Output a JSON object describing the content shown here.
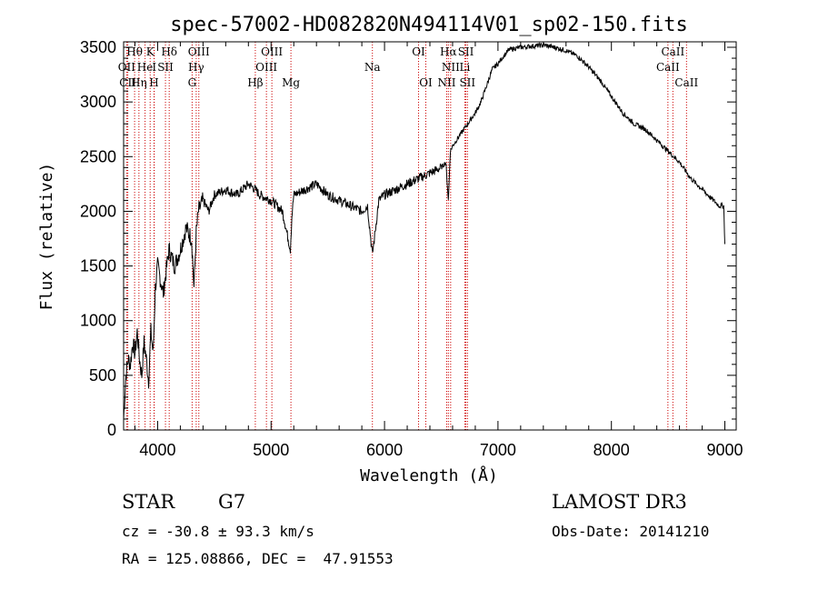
{
  "chart_data": {
    "type": "line",
    "title": "spec-57002-HD082820N494114V01_sp02-150.fits",
    "xlabel": "Wavelength (Å)",
    "ylabel": "Flux (relative)",
    "xlim": [
      3700,
      9100
    ],
    "ylim": [
      0,
      3550
    ],
    "x_ticks": [
      4000,
      5000,
      6000,
      7000,
      8000,
      9000
    ],
    "y_ticks": [
      0,
      500,
      1000,
      1500,
      2000,
      2500,
      3000,
      3500
    ],
    "series": [
      {
        "name": "flux",
        "x": [
          3700,
          3720,
          3740,
          3760,
          3780,
          3800,
          3820,
          3840,
          3860,
          3880,
          3900,
          3920,
          3940,
          3960,
          3980,
          4000,
          4050,
          4100,
          4150,
          4200,
          4250,
          4300,
          4320,
          4340,
          4360,
          4400,
          4450,
          4500,
          4600,
          4700,
          4800,
          4861,
          4900,
          5000,
          5100,
          5170,
          5183,
          5200,
          5300,
          5400,
          5500,
          5600,
          5700,
          5800,
          5850,
          5893,
          5950,
          6000,
          6100,
          6200,
          6300,
          6400,
          6500,
          6540,
          6563,
          6580,
          6600,
          6700,
          6800,
          6850,
          6900,
          6950,
          7000,
          7050,
          7100,
          7200,
          7300,
          7400,
          7500,
          7600,
          7700,
          7800,
          7900,
          8000,
          8100,
          8200,
          8300,
          8400,
          8500,
          8600,
          8700,
          8800,
          8900,
          8950,
          8990,
          9000
        ],
        "y": [
          100,
          500,
          650,
          600,
          800,
          700,
          900,
          650,
          500,
          800,
          650,
          450,
          900,
          700,
          1300,
          1500,
          1250,
          1650,
          1500,
          1650,
          1850,
          1750,
          1300,
          1800,
          2000,
          2100,
          2000,
          2150,
          2200,
          2150,
          2250,
          2200,
          2150,
          2100,
          2000,
          1650,
          1950,
          2150,
          2200,
          2250,
          2150,
          2100,
          2050,
          2000,
          2050,
          1600,
          2100,
          2150,
          2200,
          2250,
          2300,
          2350,
          2400,
          2450,
          2100,
          2550,
          2600,
          2750,
          2900,
          3000,
          3150,
          3300,
          3350,
          3420,
          3480,
          3500,
          3510,
          3520,
          3500,
          3470,
          3420,
          3320,
          3200,
          3050,
          2900,
          2800,
          2750,
          2650,
          2550,
          2450,
          2300,
          2200,
          2100,
          2050,
          2050,
          1700
        ]
      }
    ],
    "lines": [
      {
        "name": "Hθ",
        "wavelength": 3797,
        "row": 1
      },
      {
        "name": "OII",
        "wavelength": 3727,
        "row": 2
      },
      {
        "name": "CII",
        "wavelength": 3737,
        "row": 3
      },
      {
        "name": "Hη",
        "wavelength": 3835,
        "row": 3
      },
      {
        "name": "K",
        "wavelength": 3934,
        "row": 1
      },
      {
        "name": "He",
        "wavelength": 3889,
        "row": 2
      },
      {
        "name": "I",
        "wavelength": 3970,
        "row": 2
      },
      {
        "name": "H",
        "wavelength": 3968,
        "row": 3
      },
      {
        "name": "SII",
        "wavelength": 4069,
        "row": 2
      },
      {
        "name": "Hδ",
        "wavelength": 4102,
        "row": 1
      },
      {
        "name": "OIII",
        "wavelength": 4363,
        "row": 1
      },
      {
        "name": "Hγ",
        "wavelength": 4340,
        "row": 2
      },
      {
        "name": "G",
        "wavelength": 4304,
        "row": 3
      },
      {
        "name": "Hβ",
        "wavelength": 4861,
        "row": 3
      },
      {
        "name": "OIII",
        "wavelength": 5007,
        "row": 1
      },
      {
        "name": "OIII",
        "wavelength": 4959,
        "row": 2
      },
      {
        "name": "Mg",
        "wavelength": 5175,
        "row": 3
      },
      {
        "name": "Na",
        "wavelength": 5893,
        "row": 2
      },
      {
        "name": "OI",
        "wavelength": 6300,
        "row": 1
      },
      {
        "name": "OI",
        "wavelength": 6364,
        "row": 3
      },
      {
        "name": "Hα",
        "wavelength": 6563,
        "row": 1
      },
      {
        "name": "NII",
        "wavelength": 6583,
        "row": 2
      },
      {
        "name": "NII",
        "wavelength": 6548,
        "row": 3
      },
      {
        "name": "SII",
        "wavelength": 6717,
        "row": 1
      },
      {
        "name": "SII",
        "wavelength": 6731,
        "row": 3
      },
      {
        "name": "Li",
        "wavelength": 6708,
        "row": 2
      },
      {
        "name": "CaII",
        "wavelength": 8542,
        "row": 1
      },
      {
        "name": "CaII",
        "wavelength": 8498,
        "row": 2
      },
      {
        "name": "CaII",
        "wavelength": 8662,
        "row": 3
      }
    ],
    "line_color": "#cc0000",
    "grid": false,
    "legend": "none"
  },
  "info": {
    "object_class": "STAR",
    "subclass": "G7",
    "survey": "LAMOST DR3",
    "redshift": "cz = -30.8 ± 93.3 km/s",
    "obs_date": "Obs-Date: 20141210",
    "coords": "RA = 125.08866, DEC =  47.91553"
  }
}
